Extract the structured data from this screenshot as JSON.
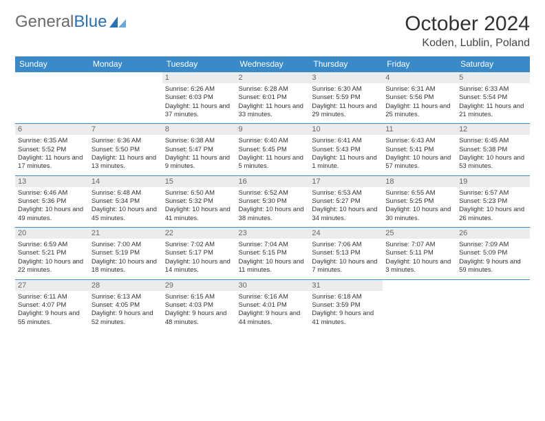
{
  "brand": {
    "part1": "General",
    "part2": "Blue"
  },
  "title": "October 2024",
  "location": "Koden, Lublin, Poland",
  "colors": {
    "header_bg": "#3a8ac9",
    "header_fg": "#ffffff",
    "daynum_bg": "#ececec",
    "daynum_fg": "#666666",
    "border": "#3a8ac9",
    "body_text": "#333333"
  },
  "day_headers": [
    "Sunday",
    "Monday",
    "Tuesday",
    "Wednesday",
    "Thursday",
    "Friday",
    "Saturday"
  ],
  "first_weekday": 2,
  "days": [
    {
      "n": 1,
      "sunrise": "6:26 AM",
      "sunset": "6:03 PM",
      "daylight": "11 hours and 37 minutes."
    },
    {
      "n": 2,
      "sunrise": "6:28 AM",
      "sunset": "6:01 PM",
      "daylight": "11 hours and 33 minutes."
    },
    {
      "n": 3,
      "sunrise": "6:30 AM",
      "sunset": "5:59 PM",
      "daylight": "11 hours and 29 minutes."
    },
    {
      "n": 4,
      "sunrise": "6:31 AM",
      "sunset": "5:56 PM",
      "daylight": "11 hours and 25 minutes."
    },
    {
      "n": 5,
      "sunrise": "6:33 AM",
      "sunset": "5:54 PM",
      "daylight": "11 hours and 21 minutes."
    },
    {
      "n": 6,
      "sunrise": "6:35 AM",
      "sunset": "5:52 PM",
      "daylight": "11 hours and 17 minutes."
    },
    {
      "n": 7,
      "sunrise": "6:36 AM",
      "sunset": "5:50 PM",
      "daylight": "11 hours and 13 minutes."
    },
    {
      "n": 8,
      "sunrise": "6:38 AM",
      "sunset": "5:47 PM",
      "daylight": "11 hours and 9 minutes."
    },
    {
      "n": 9,
      "sunrise": "6:40 AM",
      "sunset": "5:45 PM",
      "daylight": "11 hours and 5 minutes."
    },
    {
      "n": 10,
      "sunrise": "6:41 AM",
      "sunset": "5:43 PM",
      "daylight": "11 hours and 1 minute."
    },
    {
      "n": 11,
      "sunrise": "6:43 AM",
      "sunset": "5:41 PM",
      "daylight": "10 hours and 57 minutes."
    },
    {
      "n": 12,
      "sunrise": "6:45 AM",
      "sunset": "5:38 PM",
      "daylight": "10 hours and 53 minutes."
    },
    {
      "n": 13,
      "sunrise": "6:46 AM",
      "sunset": "5:36 PM",
      "daylight": "10 hours and 49 minutes."
    },
    {
      "n": 14,
      "sunrise": "6:48 AM",
      "sunset": "5:34 PM",
      "daylight": "10 hours and 45 minutes."
    },
    {
      "n": 15,
      "sunrise": "6:50 AM",
      "sunset": "5:32 PM",
      "daylight": "10 hours and 41 minutes."
    },
    {
      "n": 16,
      "sunrise": "6:52 AM",
      "sunset": "5:30 PM",
      "daylight": "10 hours and 38 minutes."
    },
    {
      "n": 17,
      "sunrise": "6:53 AM",
      "sunset": "5:27 PM",
      "daylight": "10 hours and 34 minutes."
    },
    {
      "n": 18,
      "sunrise": "6:55 AM",
      "sunset": "5:25 PM",
      "daylight": "10 hours and 30 minutes."
    },
    {
      "n": 19,
      "sunrise": "6:57 AM",
      "sunset": "5:23 PM",
      "daylight": "10 hours and 26 minutes."
    },
    {
      "n": 20,
      "sunrise": "6:59 AM",
      "sunset": "5:21 PM",
      "daylight": "10 hours and 22 minutes."
    },
    {
      "n": 21,
      "sunrise": "7:00 AM",
      "sunset": "5:19 PM",
      "daylight": "10 hours and 18 minutes."
    },
    {
      "n": 22,
      "sunrise": "7:02 AM",
      "sunset": "5:17 PM",
      "daylight": "10 hours and 14 minutes."
    },
    {
      "n": 23,
      "sunrise": "7:04 AM",
      "sunset": "5:15 PM",
      "daylight": "10 hours and 11 minutes."
    },
    {
      "n": 24,
      "sunrise": "7:06 AM",
      "sunset": "5:13 PM",
      "daylight": "10 hours and 7 minutes."
    },
    {
      "n": 25,
      "sunrise": "7:07 AM",
      "sunset": "5:11 PM",
      "daylight": "10 hours and 3 minutes."
    },
    {
      "n": 26,
      "sunrise": "7:09 AM",
      "sunset": "5:09 PM",
      "daylight": "9 hours and 59 minutes."
    },
    {
      "n": 27,
      "sunrise": "6:11 AM",
      "sunset": "4:07 PM",
      "daylight": "9 hours and 55 minutes."
    },
    {
      "n": 28,
      "sunrise": "6:13 AM",
      "sunset": "4:05 PM",
      "daylight": "9 hours and 52 minutes."
    },
    {
      "n": 29,
      "sunrise": "6:15 AM",
      "sunset": "4:03 PM",
      "daylight": "9 hours and 48 minutes."
    },
    {
      "n": 30,
      "sunrise": "6:16 AM",
      "sunset": "4:01 PM",
      "daylight": "9 hours and 44 minutes."
    },
    {
      "n": 31,
      "sunrise": "6:18 AM",
      "sunset": "3:59 PM",
      "daylight": "9 hours and 41 minutes."
    }
  ]
}
